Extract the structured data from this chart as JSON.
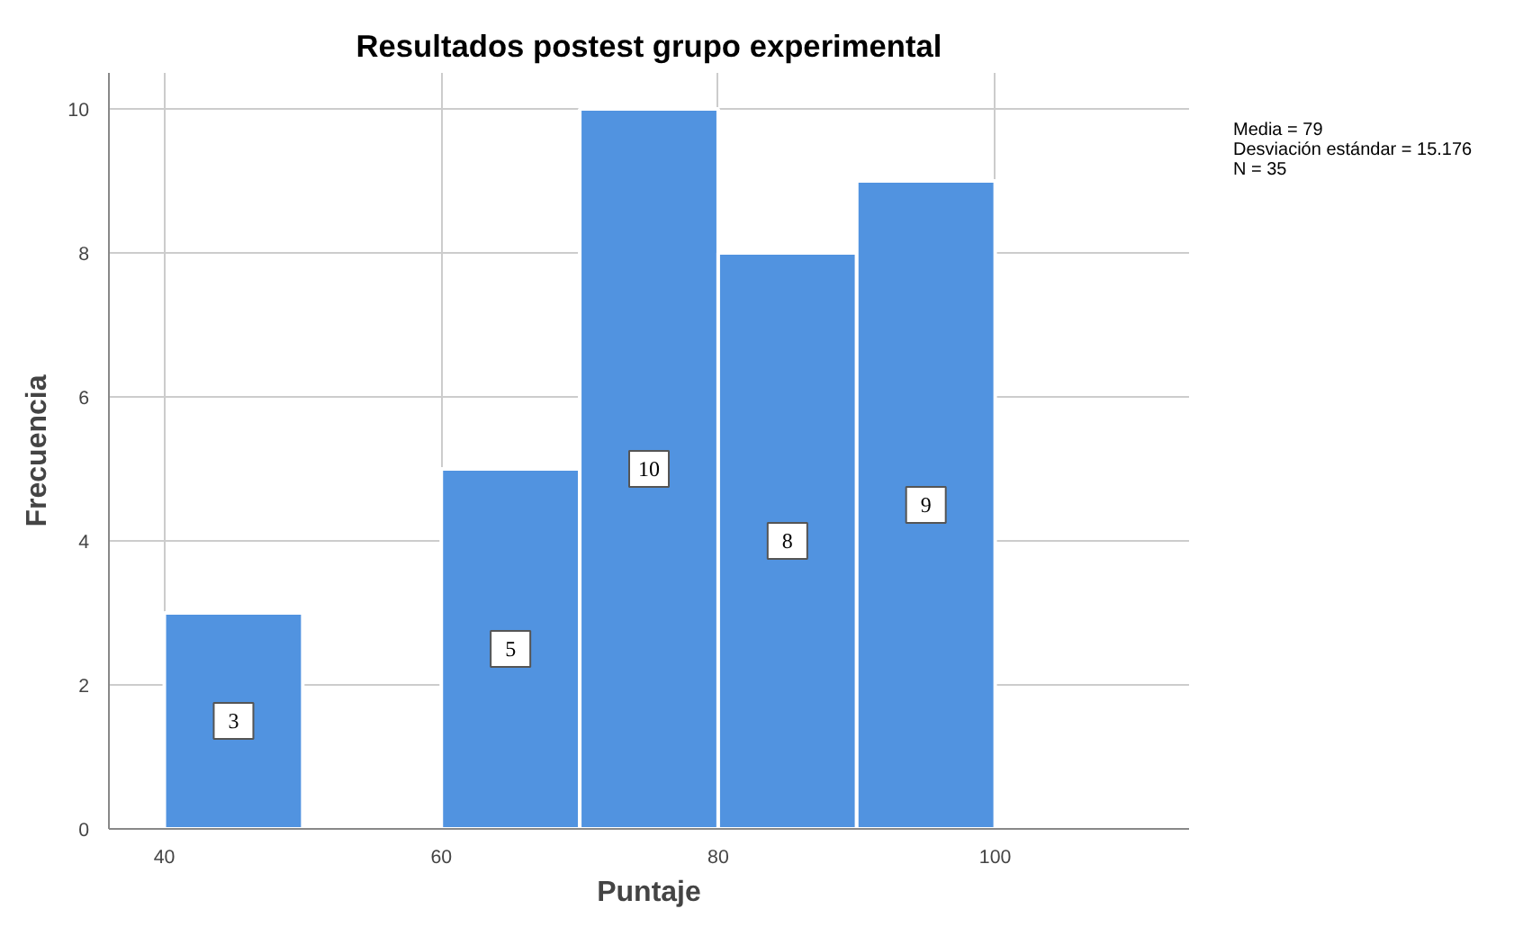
{
  "chart_data": {
    "type": "histogram",
    "title": "Resultados postest grupo experimental",
    "xlabel": "Puntaje",
    "ylabel": "Frecuencia",
    "bins": [
      40,
      50,
      60,
      70,
      80,
      90,
      100
    ],
    "values": [
      3,
      0,
      5,
      10,
      8,
      9
    ],
    "value_labels": [
      "3",
      null,
      "5",
      "10",
      "8",
      "9"
    ],
    "color": "#5193e0",
    "xlim": [
      36,
      114
    ],
    "ylim": [
      0,
      10.5
    ],
    "xticks": [
      40,
      60,
      80,
      100
    ],
    "yticks": [
      0,
      2,
      4,
      6,
      8,
      10
    ],
    "grid": true,
    "annotations": [
      "Media = 79",
      "Desviación estándar = 15.176",
      "N = 35"
    ]
  }
}
